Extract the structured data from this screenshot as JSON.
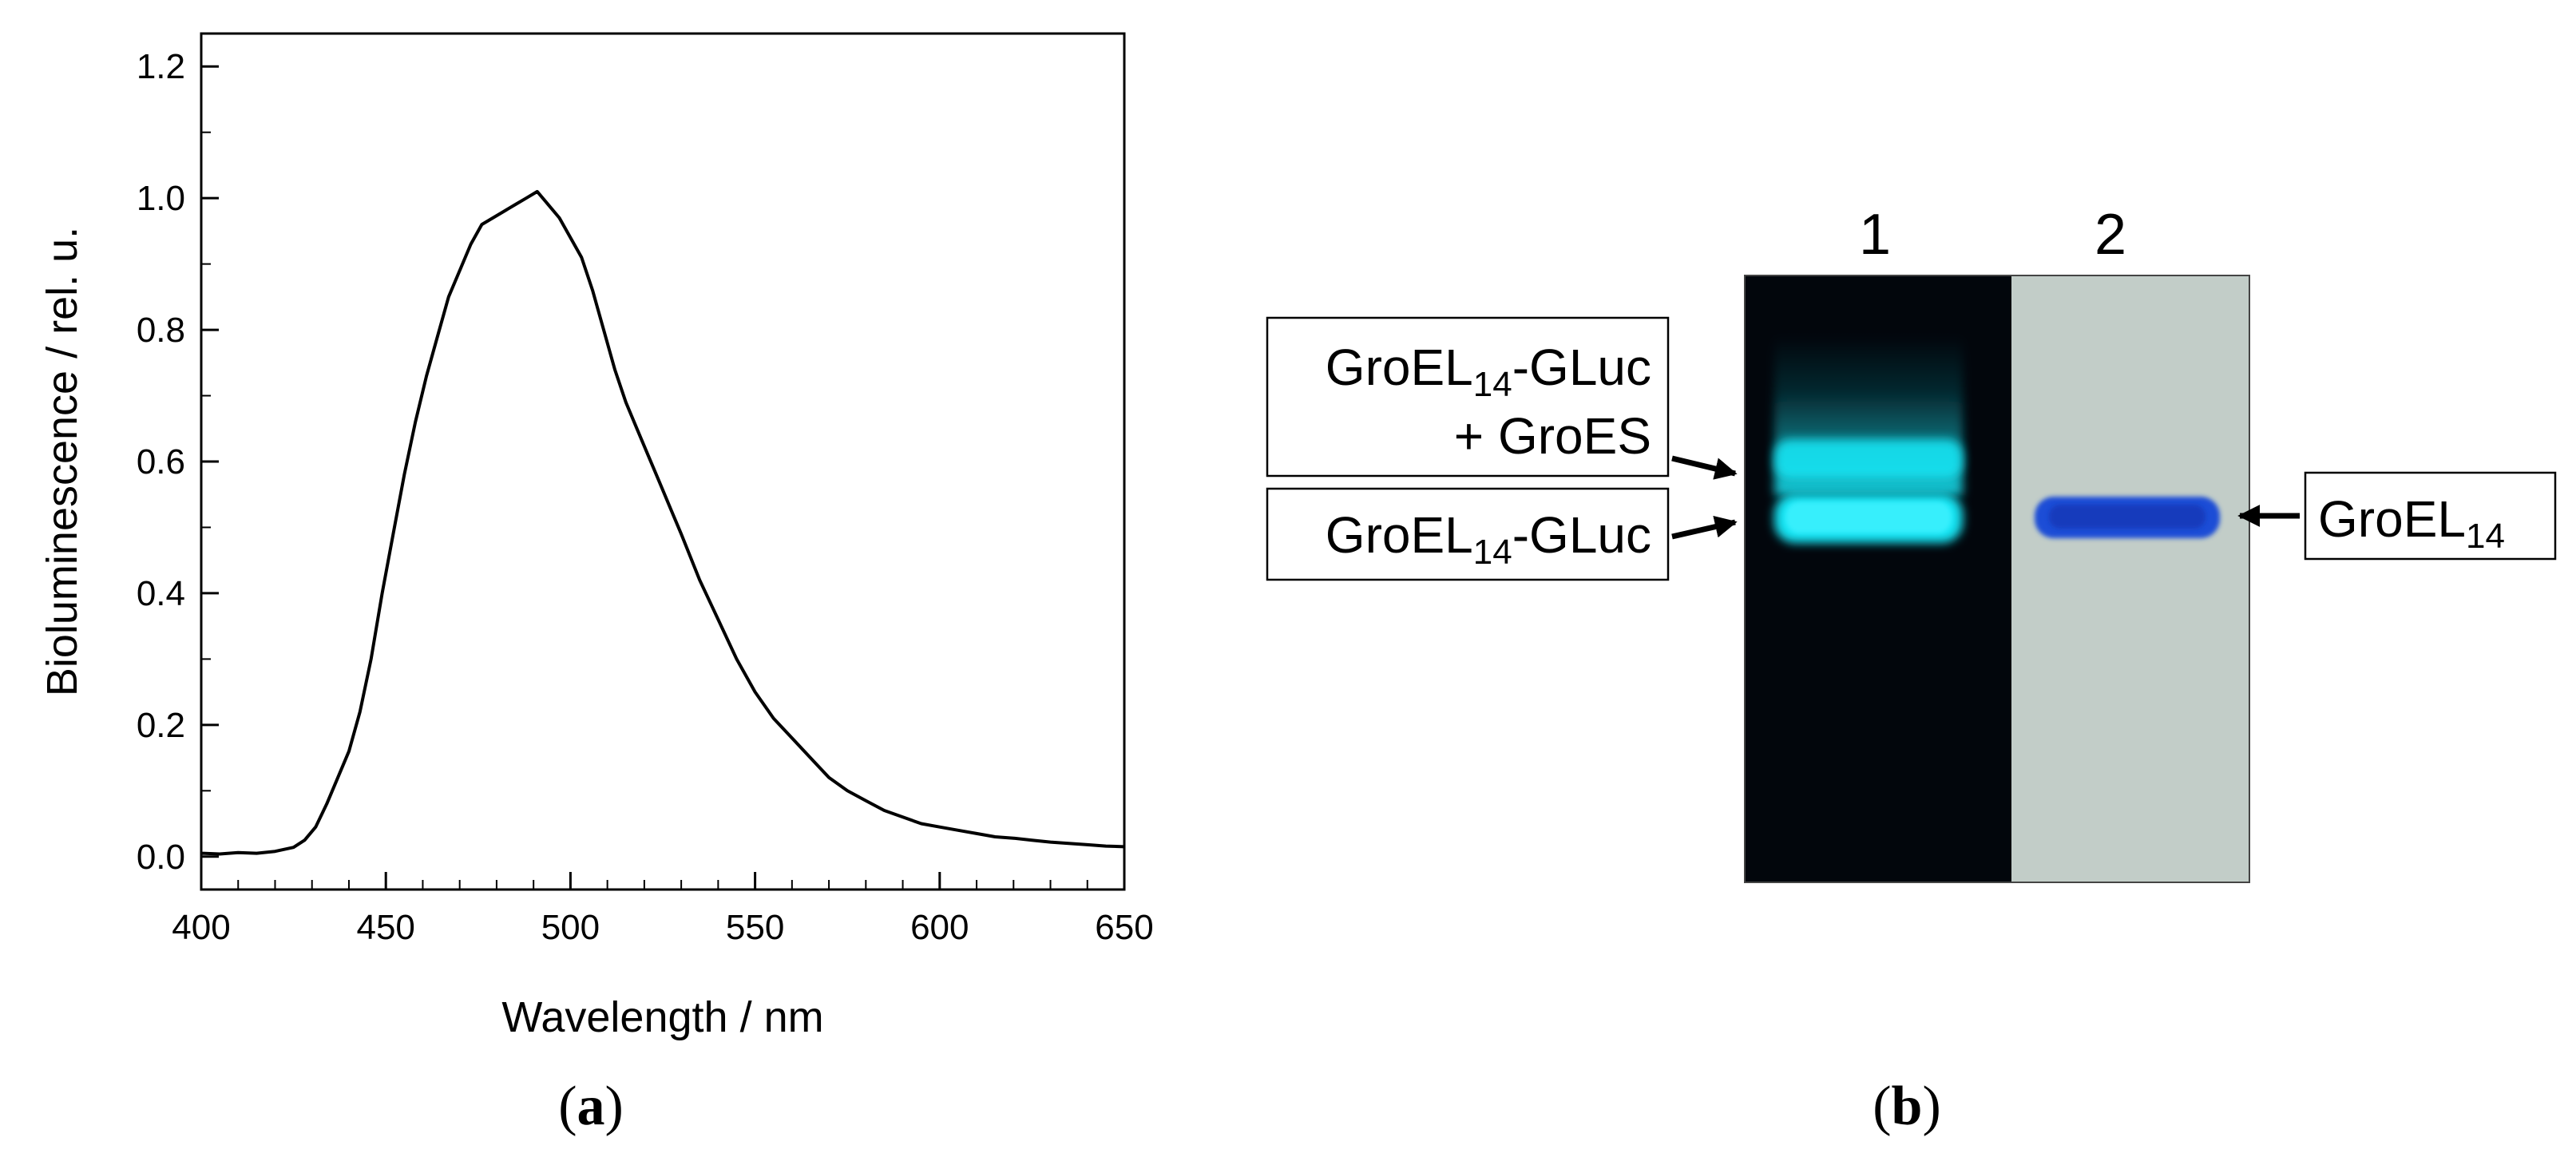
{
  "chart_data": {
    "type": "line",
    "title": "",
    "xlabel": "Wavelength / nm",
    "ylabel": "Bioluminescence / rel. u.",
    "xlim": [
      400,
      650
    ],
    "ylim": [
      -0.05,
      1.25
    ],
    "x_ticks": [
      400,
      450,
      500,
      550,
      600,
      650
    ],
    "x_tick_labels": [
      "400",
      "450",
      "500",
      "550",
      "600",
      "650"
    ],
    "y_ticks": [
      0.0,
      0.2,
      0.4,
      0.6,
      0.8,
      1.0,
      1.2
    ],
    "y_tick_labels": [
      "0.0",
      "0.2",
      "0.4",
      "0.6",
      "0.8",
      "1.0",
      "1.2"
    ],
    "grid": false,
    "legend": "none",
    "series": [
      {
        "color": "#000000",
        "x": [
          400,
          405,
          410,
          415,
          420,
          425,
          428,
          431,
          434,
          437,
          440,
          443,
          446,
          449,
          452,
          455,
          458,
          461,
          464,
          467,
          470,
          473,
          476,
          479,
          482,
          485,
          488,
          491,
          494,
          497,
          500,
          503,
          506,
          509,
          512,
          515,
          518,
          521,
          524,
          527,
          530,
          535,
          540,
          545,
          550,
          555,
          560,
          565,
          570,
          575,
          580,
          585,
          590,
          595,
          600,
          605,
          610,
          615,
          620,
          625,
          630,
          635,
          640,
          645,
          650
        ],
        "y": [
          0.005,
          0.004,
          0.006,
          0.005,
          0.008,
          0.014,
          0.025,
          0.045,
          0.08,
          0.12,
          0.16,
          0.22,
          0.3,
          0.4,
          0.49,
          0.58,
          0.66,
          0.73,
          0.79,
          0.85,
          0.89,
          0.93,
          0.96,
          0.97,
          0.98,
          0.99,
          1.0,
          1.01,
          0.99,
          0.97,
          0.94,
          0.91,
          0.86,
          0.8,
          0.74,
          0.69,
          0.65,
          0.61,
          0.57,
          0.53,
          0.49,
          0.42,
          0.36,
          0.3,
          0.25,
          0.21,
          0.18,
          0.15,
          0.12,
          0.1,
          0.085,
          0.07,
          0.06,
          0.05,
          0.045,
          0.04,
          0.035,
          0.03,
          0.028,
          0.025,
          0.022,
          0.02,
          0.018,
          0.016,
          0.015
        ]
      }
    ]
  },
  "panel_a": {
    "label_open": "(",
    "label_letter": "a",
    "label_close": ")"
  },
  "panel_b": {
    "label_open": "(",
    "label_letter": "b",
    "label_close": ")",
    "lanes": [
      "1",
      "2"
    ],
    "left_bands": [
      {
        "line1": "GroEL",
        "line1_sub": "14",
        "line1_rest": "-GLuc",
        "line2": "+ GroES"
      },
      {
        "line1": "GroEL",
        "line1_sub": "14",
        "line1_rest": "-GLuc"
      }
    ],
    "right_band": {
      "text": "GroEL",
      "sub": "14"
    },
    "colors": {
      "lane1_background": "#02060c",
      "lane1_band": "#19e3f2",
      "lane2_background": "#c2cdc8",
      "lane2_band": "#1a4ed6"
    }
  }
}
